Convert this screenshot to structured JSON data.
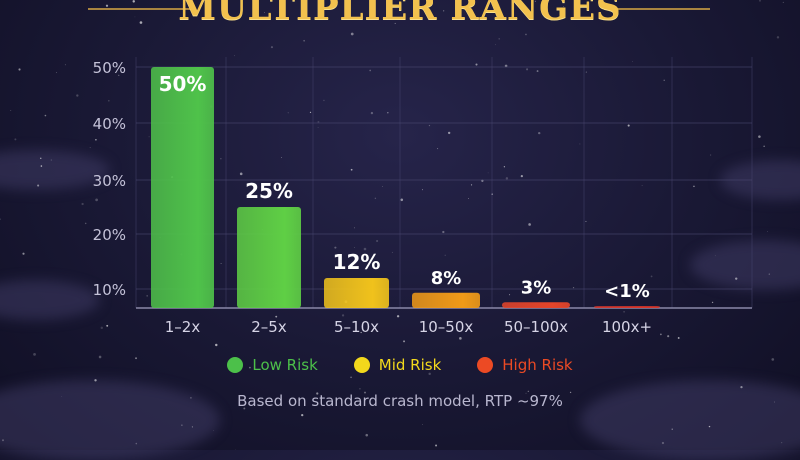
{
  "chart_data": {
    "type": "bar",
    "title": "MULTIPLIER RANGES",
    "categories": [
      "1–2x",
      "2–5x",
      "5–10x",
      "10–50x",
      "50–100x",
      "100x+"
    ],
    "values": [
      50,
      25,
      12,
      8,
      3,
      1
    ],
    "data_labels": [
      "50%",
      "25%",
      "12%",
      "8%",
      "3%",
      "<1%"
    ],
    "bar_colors": [
      "#4fc24a",
      "#5fcf45",
      "#f0c21c",
      "#f09a18",
      "#e5452a",
      "#d9352a"
    ],
    "y_ticks": [
      "10%",
      "20%",
      "30%",
      "40%",
      "50%"
    ],
    "y_tick_values": [
      10,
      20,
      30,
      40,
      50
    ],
    "ylim": [
      0,
      50
    ],
    "grid": true,
    "legend_position": "bottom",
    "legend": [
      {
        "label": "Low Risk",
        "color": "#4cc04a"
      },
      {
        "label": "Mid Risk",
        "color": "#f2d81c"
      },
      {
        "label": "High Risk",
        "color": "#ec4a24"
      }
    ],
    "footnote": "Based on standard crash model, RTP ~97%"
  }
}
